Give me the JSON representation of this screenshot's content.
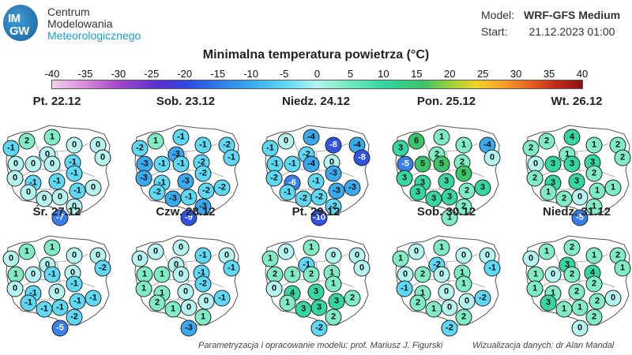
{
  "logo": {
    "mark_line1": "IM",
    "mark_line2": "GW",
    "line1": "Centrum",
    "line2": "Modelowania",
    "line3": "Meteorologicznego"
  },
  "model": {
    "label": "Model:",
    "value": "WRF-GFS Medium"
  },
  "start": {
    "label": "Start:",
    "value": "21.12.2023 01:00"
  },
  "title": "Minimalna temperatura powietrza (°C)",
  "scale": {
    "ticks": [
      "-40",
      "-35",
      "-30",
      "-25",
      "-20",
      "-15",
      "-10",
      "-5",
      "0",
      "5",
      "10",
      "15",
      "20",
      "25",
      "30",
      "35",
      "40"
    ]
  },
  "colors": {
    "cold_dark": "#2f55e0",
    "cold": "#3aaaee",
    "cool": "#5fd8f4",
    "zero": "#b4f3f0",
    "mild": "#80ecc6",
    "warm": "#35d6a2",
    "warmer": "#3cc46a"
  },
  "days": [
    {
      "date": "Pt. 22.12",
      "values": [
        "1",
        "2",
        "-1",
        "0",
        "0",
        "0",
        "0",
        "0",
        "0",
        "0",
        "-1",
        "0",
        "-1",
        "-1",
        "-1",
        "0",
        "0",
        "0",
        "-1",
        "0",
        "0",
        "-7"
      ]
    },
    {
      "date": "Sob. 23.12",
      "values": [
        "-1",
        "1",
        "-2",
        "-1",
        "-2",
        "-3",
        "-1",
        "-3",
        "-1",
        "-1",
        "-2",
        "-3",
        "-1",
        "-3",
        "-2",
        "-2",
        "-3",
        "-1",
        "-2",
        "-3",
        "-2",
        "-9"
      ]
    },
    {
      "date": "Niedz. 24.12",
      "values": [
        "-4",
        "0",
        "-1",
        "-8",
        "-4",
        "-2",
        "-8",
        "-1",
        "-1",
        "-4",
        "0",
        "-2",
        "-6",
        "-1",
        "-3",
        "-1",
        "-2",
        "-2",
        "-3",
        "-2",
        "-3",
        "-10"
      ]
    },
    {
      "date": "Pon. 25.12",
      "values": [
        "1",
        "6",
        "3",
        "1",
        "-4",
        "2",
        "0",
        "-5",
        "5",
        "5",
        "2",
        "3",
        "3",
        "3",
        "5",
        "3",
        "3",
        "3",
        "2",
        "2",
        "3",
        "1"
      ]
    },
    {
      "date": "Wt. 26.12",
      "values": [
        "4",
        "2",
        "2",
        "1",
        "2",
        "1",
        "2",
        "0",
        "3",
        "3",
        "3",
        "2",
        "3",
        "3",
        "2",
        "1",
        "2",
        "0",
        "1",
        "1",
        "1",
        "-5"
      ]
    },
    {
      "date": "Śr. 27.12",
      "values": [
        "1",
        "1",
        "0",
        "0",
        "0",
        "0",
        "-2",
        "1",
        "0",
        "-1",
        "0",
        "0",
        "-1",
        "0",
        "-1",
        "-1",
        "-1",
        "-1",
        "-1",
        "-2",
        "-1",
        "-5"
      ]
    },
    {
      "date": "Czw. 28.12",
      "values": [
        "0",
        "0",
        "0",
        "-1",
        "0",
        "0",
        "-1",
        "1",
        "1",
        "0",
        "-1",
        "1",
        "1",
        "0",
        "-2",
        "2",
        "1",
        "0",
        "0",
        "1",
        "-1",
        "-3"
      ]
    },
    {
      "date": "Pt. 29.12",
      "values": [
        "1",
        "0",
        "1",
        "0",
        "0",
        "-1",
        "0",
        "2",
        "1",
        "2",
        "1",
        "0",
        "4",
        "3",
        "1",
        "1",
        "3",
        "3",
        "3",
        "2",
        "2",
        "-2"
      ]
    },
    {
      "date": "Sob. 30.12",
      "values": [
        "1",
        "0",
        "1",
        "0",
        "0",
        "-2",
        "-1",
        "0",
        "2",
        "0",
        "1",
        "-1",
        "1",
        "0",
        "1",
        "2",
        "1",
        "0",
        "0",
        "2",
        "-2",
        "-2"
      ]
    },
    {
      "date": "Niedz. 31.12",
      "values": [
        "2",
        "1",
        "0",
        "1",
        "2",
        "3",
        "1",
        "1",
        "0",
        "2",
        "4",
        "1",
        "1",
        "2",
        "2",
        "3",
        "1",
        "1",
        "2",
        "2",
        "0",
        "0"
      ]
    }
  ],
  "credits": {
    "left": "Parametryzacja i opracowanie modelu: prof. Mariusz J. Figurski",
    "right": "Wizualizacja danych: dr Alan Mandal"
  }
}
